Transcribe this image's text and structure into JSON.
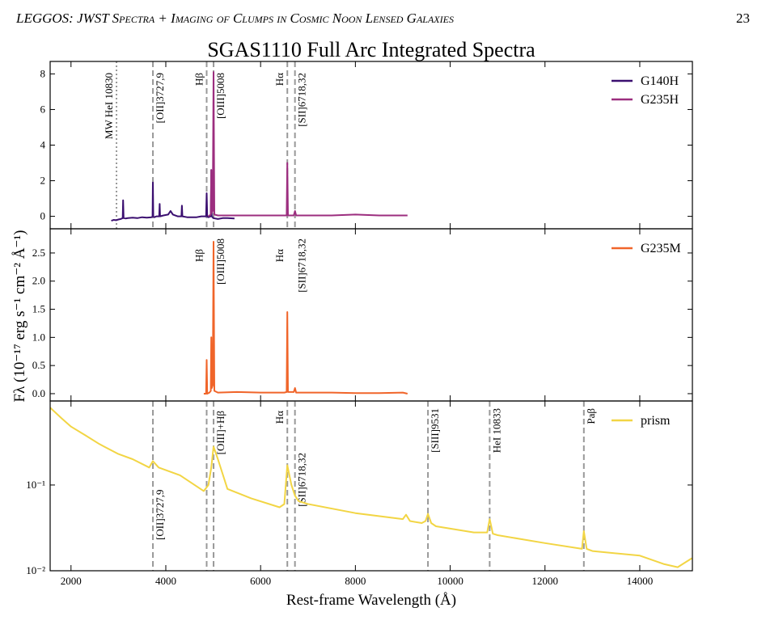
{
  "header": {
    "title": "LEGGOS: JWST Spectra + Imaging of Clumps in Cosmic Noon Lensed Galaxies",
    "page_number": "23"
  },
  "figure": {
    "title": "SGAS1110 Full Arc Integrated Spectra",
    "ylabel": "Fλ (10⁻¹⁷ erg s⁻¹ cm⁻² Å⁻¹)",
    "xlabel": "Rest-frame Wavelength (Å)"
  },
  "chart_data": [
    {
      "type": "line",
      "xlim": [
        1560,
        15110
      ],
      "ylim": [
        -0.7,
        8.7
      ],
      "yticks": [
        0,
        2,
        4,
        6,
        8
      ],
      "legend": "upper right",
      "annotation_lines": true,
      "series": [
        {
          "name": "G140H",
          "color": "#3b0f70",
          "x": [
            2850,
            2900,
            2950,
            3000,
            3050,
            3090,
            3100,
            3110,
            3150,
            3200,
            3300,
            3400,
            3500,
            3600,
            3700,
            3720,
            3728,
            3736,
            3760,
            3800,
            3860,
            3870,
            3880,
            3950,
            4050,
            4100,
            4150,
            4250,
            4330,
            4340,
            4350,
            4450,
            4550,
            4650,
            4750,
            4850,
            4862,
            4874,
            4900,
            4950,
            4960,
            4970,
            5000,
            5100,
            5200,
            5300,
            5450
          ],
          "values": [
            -0.25,
            -0.2,
            -0.22,
            -0.18,
            -0.15,
            -0.1,
            0.9,
            -0.1,
            -0.12,
            -0.1,
            -0.08,
            -0.1,
            -0.05,
            -0.08,
            -0.05,
            0.0,
            1.9,
            0.0,
            -0.05,
            0.0,
            0.0,
            0.7,
            0.0,
            0.05,
            0.1,
            0.3,
            0.1,
            0.0,
            0.0,
            0.6,
            0.0,
            -0.05,
            -0.05,
            -0.05,
            0.0,
            0.0,
            1.3,
            0.0,
            -0.05,
            0.0,
            2.6,
            0.0,
            -0.1,
            -0.15,
            -0.1,
            -0.1,
            -0.12
          ]
        },
        {
          "name": "G235H",
          "color": "#9c2e7f",
          "x": [
            4900,
            4950,
            4960,
            4970,
            4990,
            5008,
            5025,
            5100,
            5500,
            6000,
            6400,
            6550,
            6564,
            6578,
            6700,
            6725,
            6750,
            7000,
            7500,
            8000,
            8500,
            9000,
            9100
          ],
          "values": [
            0.0,
            0.1,
            2.6,
            0.2,
            0.3,
            8.1,
            0.1,
            0.05,
            0.05,
            0.05,
            0.05,
            0.05,
            3.0,
            0.05,
            0.05,
            0.3,
            0.05,
            0.05,
            0.05,
            0.1,
            0.05,
            0.05,
            0.05
          ]
        }
      ],
      "annotations": [
        {
          "x": 2960,
          "label": "MW HeI 10830",
          "style": "dotted"
        },
        {
          "x": 3728,
          "label": "[OII]3727,9",
          "style": "dashed"
        },
        {
          "x": 4862,
          "label": "Hβ",
          "style": "dashed"
        },
        {
          "x": 5008,
          "label": "[OIII]5008",
          "style": "dashed"
        },
        {
          "x": 6564,
          "label": "Hα",
          "style": "dashed"
        },
        {
          "x": 6725,
          "label": "[SII]6718,32",
          "style": "dashed"
        }
      ]
    },
    {
      "type": "line",
      "xlim": [
        1560,
        15110
      ],
      "ylim": [
        -0.13,
        2.93
      ],
      "yticks": [
        {
          "value": 0,
          "label": "0.0"
        },
        0.5,
        {
          "value": 1,
          "label": "1.0"
        },
        1.5,
        {
          "value": 2,
          "label": "2.0"
        },
        2.5
      ],
      "legend": "upper right",
      "annotation_lines": false,
      "series": [
        {
          "name": "G235M",
          "color": "#f0652a",
          "x": [
            4800,
            4850,
            4862,
            4874,
            4920,
            4950,
            4960,
            4970,
            4990,
            5008,
            5025,
            5100,
            5500,
            6000,
            6500,
            6550,
            6564,
            6578,
            6700,
            6725,
            6750,
            7000,
            7500,
            8000,
            8500,
            9000,
            9100
          ],
          "values": [
            0.0,
            0.0,
            0.6,
            0.0,
            0.02,
            0.05,
            1.0,
            0.1,
            0.15,
            2.7,
            0.05,
            0.02,
            0.03,
            0.02,
            0.02,
            0.03,
            1.45,
            0.03,
            0.03,
            0.1,
            0.02,
            0.02,
            0.02,
            0.01,
            0.01,
            0.02,
            0.0
          ]
        }
      ],
      "annotations": [
        {
          "x": 4862,
          "label": "Hβ"
        },
        {
          "x": 5008,
          "label": "[OIII]5008"
        },
        {
          "x": 6564,
          "label": "Hα"
        },
        {
          "x": 6725,
          "label": "[SII]6718,32"
        }
      ]
    },
    {
      "type": "line",
      "xlim": [
        1560,
        15110
      ],
      "ylim": [
        0.01,
        0.955
      ],
      "log_y": true,
      "yticks": [
        {
          "value": 0.01,
          "label": "10⁻²"
        },
        {
          "value": 0.1,
          "label": "10⁻¹"
        }
      ],
      "xticks": [
        2000,
        4000,
        6000,
        8000,
        10000,
        12000,
        14000
      ],
      "legend": "upper right",
      "annotation_lines": true,
      "series": [
        {
          "name": "prism",
          "color": "#f2d544",
          "x": [
            1560,
            1800,
            2000,
            2300,
            2600,
            3000,
            3300,
            3650,
            3728,
            3850,
            4300,
            4800,
            4900,
            4960,
            5008,
            5100,
            5300,
            5800,
            6400,
            6500,
            6564,
            6650,
            6725,
            6800,
            7000,
            8000,
            9000,
            9069,
            9150,
            9400,
            9480,
            9531,
            9600,
            9700,
            10500,
            10780,
            10833,
            10900,
            11000,
            12000,
            12780,
            12820,
            12880,
            13000,
            14000,
            14500,
            14800,
            15100
          ],
          "values": [
            0.8,
            0.6,
            0.48,
            0.38,
            0.3,
            0.23,
            0.2,
            0.16,
            0.19,
            0.16,
            0.13,
            0.085,
            0.1,
            0.16,
            0.28,
            0.2,
            0.09,
            0.07,
            0.055,
            0.06,
            0.17,
            0.1,
            0.075,
            0.065,
            0.06,
            0.047,
            0.04,
            0.045,
            0.038,
            0.036,
            0.038,
            0.046,
            0.036,
            0.033,
            0.028,
            0.028,
            0.04,
            0.027,
            0.026,
            0.021,
            0.018,
            0.029,
            0.018,
            0.017,
            0.015,
            0.012,
            0.011,
            0.014
          ]
        }
      ],
      "annotations": [
        {
          "x": 3728,
          "label": "[OII]3727,9",
          "style": "dashed"
        },
        {
          "x": 4862,
          "style": "dashed"
        },
        {
          "x": 5008,
          "label": "[OIII]+Hβ",
          "style": "dashed"
        },
        {
          "x": 6564,
          "label": "Hα",
          "style": "dashed"
        },
        {
          "x": 6725,
          "label": "[SII]6718,32",
          "style": "dashed"
        },
        {
          "x": 9531,
          "label": "[SIII]9531",
          "style": "dashed"
        },
        {
          "x": 10833,
          "label": "HeI 10833",
          "style": "dashed"
        },
        {
          "x": 12820,
          "label": "Paβ",
          "style": "dashed"
        }
      ]
    }
  ]
}
